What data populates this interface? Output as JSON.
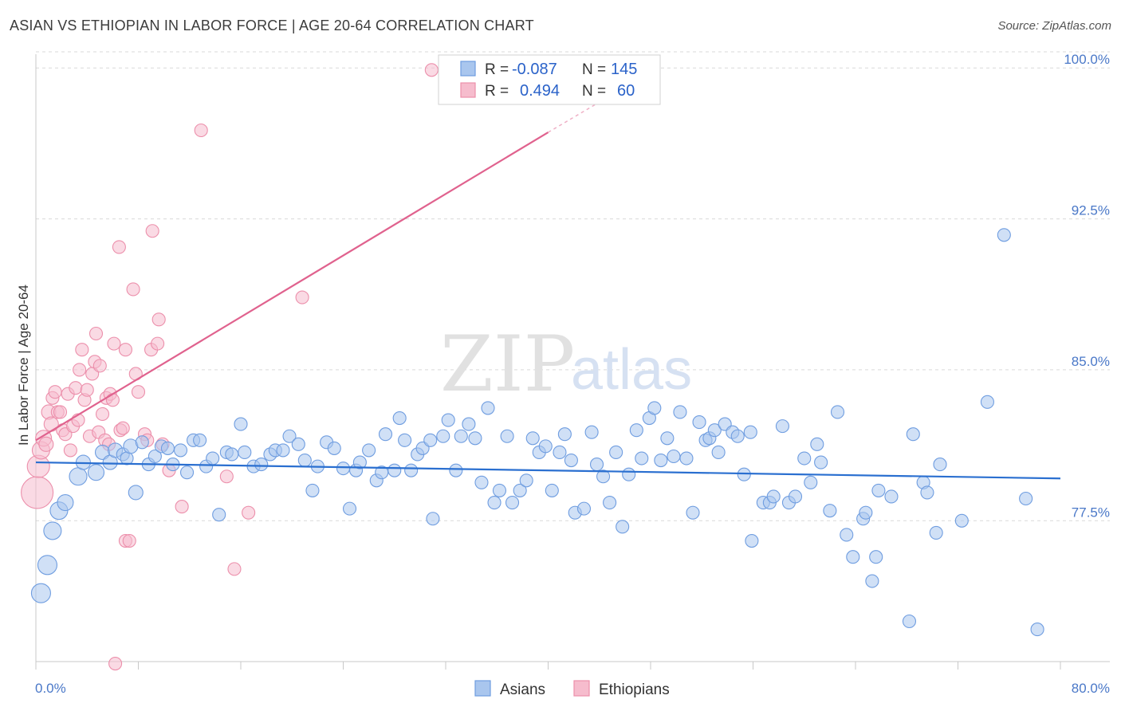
{
  "title": "ASIAN VS ETHIOPIAN IN LABOR FORCE | AGE 20-64 CORRELATION CHART",
  "source": "Source: ZipAtlas.com",
  "watermark": {
    "zip": "ZIP",
    "atlas": "atlas"
  },
  "colors": {
    "asian_fill": "#a9c6ee",
    "asian_stroke": "#6f9de0",
    "asian_line": "#2a6fd0",
    "ethiopian_fill": "#f6bccd",
    "ethiopian_stroke": "#ec8fab",
    "ethiopian_line": "#e0628e",
    "grid": "#d9d9d9",
    "tick_label": "#4a78c8"
  },
  "legend": {
    "r_label": "R =",
    "n_label": "N =",
    "asian": {
      "r": "-0.087",
      "n": "145"
    },
    "ethiopian": {
      "r": "0.494",
      "n": "60"
    }
  },
  "bottom_legend": {
    "asian": "Asians",
    "ethiopian": "Ethiopians"
  },
  "chart_data": {
    "type": "scatter",
    "title": "ASIAN VS ETHIOPIAN IN LABOR FORCE | AGE 20-64 CORRELATION CHART",
    "xlabel": "",
    "ylabel": "In Labor Force | Age 20-64",
    "xlim": [
      0,
      80
    ],
    "ylim": [
      70.5,
      101
    ],
    "x_tick_labels": [
      "0.0%",
      "80.0%"
    ],
    "y_ticks": [
      77.5,
      85.0,
      92.5,
      100.0
    ],
    "y_tick_labels": [
      "77.5%",
      "85.0%",
      "92.5%",
      "100.0%"
    ],
    "series": [
      {
        "name": "Asians",
        "trend": {
          "x": [
            0,
            80
          ],
          "y": [
            80.4,
            79.6
          ]
        },
        "points": [
          [
            0.4,
            73.9,
            12
          ],
          [
            0.9,
            75.3,
            12
          ],
          [
            1.3,
            77.0,
            11
          ],
          [
            1.8,
            78.0,
            11
          ],
          [
            2.3,
            78.4,
            10
          ],
          [
            3.3,
            79.7,
            11
          ],
          [
            3.7,
            80.4,
            9
          ],
          [
            4.7,
            79.9,
            10
          ],
          [
            5.2,
            80.9,
            9
          ],
          [
            5.8,
            80.4,
            9
          ],
          [
            6.2,
            81.0,
            9
          ],
          [
            6.8,
            80.8,
            8
          ],
          [
            7.1,
            80.6,
            8
          ],
          [
            7.4,
            81.2,
            9
          ],
          [
            7.8,
            78.9,
            9
          ],
          [
            8.3,
            81.4,
            8
          ],
          [
            8.8,
            80.3,
            8
          ],
          [
            9.3,
            80.7,
            8
          ],
          [
            9.8,
            81.2,
            8
          ],
          [
            10.3,
            81.1,
            8
          ],
          [
            10.7,
            80.3,
            8
          ],
          [
            11.3,
            81.0,
            8
          ],
          [
            11.8,
            79.9,
            8
          ],
          [
            12.3,
            81.5,
            8
          ],
          [
            12.8,
            81.5,
            8
          ],
          [
            13.3,
            80.2,
            8
          ],
          [
            13.8,
            80.6,
            8
          ],
          [
            14.3,
            77.8,
            8
          ],
          [
            14.9,
            80.9,
            8
          ],
          [
            15.3,
            80.8,
            8
          ],
          [
            16.0,
            82.3,
            8
          ],
          [
            16.3,
            80.9,
            8
          ],
          [
            17.0,
            80.2,
            8
          ],
          [
            17.6,
            80.3,
            8
          ],
          [
            18.3,
            80.8,
            8
          ],
          [
            18.7,
            81.0,
            8
          ],
          [
            19.3,
            81.0,
            8
          ],
          [
            19.8,
            81.7,
            8
          ],
          [
            20.5,
            81.3,
            8
          ],
          [
            21.0,
            80.5,
            8
          ],
          [
            21.6,
            79.0,
            8
          ],
          [
            22.0,
            80.2,
            8
          ],
          [
            22.7,
            81.4,
            8
          ],
          [
            23.3,
            81.1,
            8
          ],
          [
            24.0,
            80.1,
            8
          ],
          [
            24.5,
            78.1,
            8
          ],
          [
            25.0,
            80.0,
            8
          ],
          [
            25.3,
            80.4,
            8
          ],
          [
            26.0,
            81.0,
            8
          ],
          [
            26.6,
            79.5,
            8
          ],
          [
            27.0,
            79.9,
            8
          ],
          [
            27.3,
            81.8,
            8
          ],
          [
            28.0,
            80.0,
            8
          ],
          [
            28.4,
            82.6,
            8
          ],
          [
            28.8,
            81.5,
            8
          ],
          [
            29.3,
            80.0,
            8
          ],
          [
            29.8,
            80.8,
            8
          ],
          [
            30.2,
            81.1,
            8
          ],
          [
            30.8,
            81.5,
            8
          ],
          [
            31.0,
            77.6,
            8
          ],
          [
            31.8,
            81.7,
            8
          ],
          [
            32.2,
            82.5,
            8
          ],
          [
            32.8,
            80.0,
            8
          ],
          [
            33.2,
            81.7,
            8
          ],
          [
            33.8,
            82.3,
            8
          ],
          [
            34.3,
            81.6,
            8
          ],
          [
            34.8,
            79.4,
            8
          ],
          [
            35.3,
            83.1,
            8
          ],
          [
            35.8,
            78.4,
            8
          ],
          [
            36.2,
            79.0,
            8
          ],
          [
            36.8,
            81.7,
            8
          ],
          [
            37.2,
            78.4,
            8
          ],
          [
            37.8,
            79.0,
            8
          ],
          [
            38.3,
            79.5,
            8
          ],
          [
            38.8,
            81.6,
            8
          ],
          [
            39.3,
            80.9,
            8
          ],
          [
            39.8,
            81.2,
            8
          ],
          [
            40.3,
            79.0,
            8
          ],
          [
            40.9,
            80.9,
            8
          ],
          [
            41.3,
            81.8,
            8
          ],
          [
            41.8,
            80.5,
            8
          ],
          [
            42.1,
            77.9,
            8
          ],
          [
            42.8,
            78.1,
            8
          ],
          [
            43.4,
            81.9,
            8
          ],
          [
            43.8,
            80.3,
            8
          ],
          [
            44.3,
            79.7,
            8
          ],
          [
            44.8,
            78.4,
            8
          ],
          [
            45.3,
            80.9,
            8
          ],
          [
            45.8,
            77.2,
            8
          ],
          [
            46.3,
            79.8,
            8
          ],
          [
            46.9,
            82.0,
            8
          ],
          [
            47.3,
            80.6,
            8
          ],
          [
            47.9,
            82.6,
            8
          ],
          [
            48.3,
            83.1,
            8
          ],
          [
            48.8,
            80.5,
            8
          ],
          [
            49.3,
            81.6,
            8
          ],
          [
            49.8,
            80.7,
            8
          ],
          [
            50.3,
            82.9,
            8
          ],
          [
            50.8,
            80.6,
            8
          ],
          [
            51.3,
            77.9,
            8
          ],
          [
            51.8,
            82.4,
            8
          ],
          [
            52.3,
            81.5,
            8
          ],
          [
            52.6,
            81.6,
            8
          ],
          [
            53.0,
            82.0,
            8
          ],
          [
            53.3,
            80.9,
            8
          ],
          [
            53.8,
            82.3,
            8
          ],
          [
            54.4,
            81.9,
            8
          ],
          [
            54.8,
            81.7,
            8
          ],
          [
            55.3,
            79.8,
            8
          ],
          [
            55.8,
            81.9,
            8
          ],
          [
            55.9,
            76.5,
            8
          ],
          [
            56.8,
            78.4,
            8
          ],
          [
            57.3,
            78.4,
            8
          ],
          [
            57.6,
            78.7,
            8
          ],
          [
            58.3,
            82.2,
            8
          ],
          [
            58.8,
            78.4,
            8
          ],
          [
            59.3,
            78.7,
            8
          ],
          [
            60.0,
            80.6,
            8
          ],
          [
            60.5,
            79.4,
            8
          ],
          [
            61.0,
            81.3,
            8
          ],
          [
            61.3,
            80.4,
            8
          ],
          [
            62.0,
            78.0,
            8
          ],
          [
            62.6,
            82.9,
            8
          ],
          [
            63.3,
            76.8,
            8
          ],
          [
            63.8,
            75.7,
            8
          ],
          [
            64.6,
            77.6,
            8
          ],
          [
            64.8,
            77.9,
            8
          ],
          [
            65.3,
            74.5,
            8
          ],
          [
            65.6,
            75.7,
            8
          ],
          [
            65.8,
            79.0,
            8
          ],
          [
            66.8,
            78.7,
            8
          ],
          [
            68.2,
            72.5,
            8
          ],
          [
            68.5,
            81.8,
            8
          ],
          [
            69.3,
            79.4,
            8
          ],
          [
            69.6,
            78.9,
            8
          ],
          [
            70.3,
            76.9,
            8
          ],
          [
            70.6,
            80.3,
            8
          ],
          [
            72.3,
            77.5,
            8
          ],
          [
            74.3,
            83.4,
            8
          ],
          [
            75.6,
            91.7,
            8
          ],
          [
            77.3,
            78.6,
            8
          ],
          [
            78.2,
            72.1,
            8
          ]
        ]
      },
      {
        "name": "Ethiopians",
        "trend": {
          "x": [
            0,
            40
          ],
          "y": [
            81.5,
            96.8
          ]
        },
        "trend_dashed": {
          "x": [
            40,
            44
          ],
          "y": [
            96.8,
            98.3
          ]
        },
        "points": [
          [
            0.1,
            78.9,
            20
          ],
          [
            0.2,
            80.2,
            14
          ],
          [
            0.4,
            81.0,
            11
          ],
          [
            0.6,
            81.6,
            10
          ],
          [
            0.8,
            81.3,
            9
          ],
          [
            1.0,
            82.9,
            9
          ],
          [
            1.2,
            82.3,
            9
          ],
          [
            1.3,
            83.6,
            8
          ],
          [
            1.5,
            83.9,
            8
          ],
          [
            1.7,
            82.9,
            8
          ],
          [
            1.9,
            82.9,
            8
          ],
          [
            2.1,
            82.0,
            8
          ],
          [
            2.3,
            81.8,
            8
          ],
          [
            2.5,
            83.8,
            8
          ],
          [
            2.7,
            81.0,
            8
          ],
          [
            2.9,
            82.2,
            8
          ],
          [
            3.1,
            84.1,
            8
          ],
          [
            3.3,
            82.5,
            8
          ],
          [
            3.4,
            85.0,
            8
          ],
          [
            3.6,
            86.0,
            8
          ],
          [
            3.8,
            83.5,
            8
          ],
          [
            4.0,
            84.0,
            8
          ],
          [
            4.2,
            81.7,
            8
          ],
          [
            4.4,
            84.8,
            8
          ],
          [
            4.6,
            85.4,
            8
          ],
          [
            4.7,
            86.8,
            8
          ],
          [
            4.9,
            81.9,
            8
          ],
          [
            5.0,
            85.2,
            8
          ],
          [
            5.2,
            82.8,
            8
          ],
          [
            5.4,
            81.5,
            8
          ],
          [
            5.5,
            83.6,
            8
          ],
          [
            5.7,
            81.3,
            8
          ],
          [
            5.8,
            83.8,
            8
          ],
          [
            6.0,
            83.5,
            8
          ],
          [
            6.1,
            86.3,
            8
          ],
          [
            6.2,
            70.4,
            8
          ],
          [
            6.5,
            91.1,
            8
          ],
          [
            6.6,
            82.0,
            8
          ],
          [
            6.8,
            82.1,
            8
          ],
          [
            7.0,
            86.0,
            8
          ],
          [
            7.0,
            76.5,
            8
          ],
          [
            7.3,
            76.5,
            8
          ],
          [
            7.6,
            89.0,
            8
          ],
          [
            7.8,
            84.8,
            8
          ],
          [
            8.0,
            83.9,
            8
          ],
          [
            8.5,
            81.8,
            8
          ],
          [
            8.7,
            81.5,
            8
          ],
          [
            9.0,
            86.0,
            8
          ],
          [
            9.1,
            91.9,
            8
          ],
          [
            9.5,
            86.3,
            8
          ],
          [
            9.6,
            87.5,
            8
          ],
          [
            9.9,
            81.3,
            8
          ],
          [
            10.4,
            80.0,
            8
          ],
          [
            11.4,
            78.2,
            8
          ],
          [
            12.9,
            96.9,
            8
          ],
          [
            14.9,
            79.7,
            8
          ],
          [
            15.5,
            75.1,
            8
          ],
          [
            16.6,
            77.9,
            8
          ],
          [
            20.8,
            88.6,
            8
          ],
          [
            30.9,
            99.9,
            8
          ]
        ]
      }
    ]
  }
}
